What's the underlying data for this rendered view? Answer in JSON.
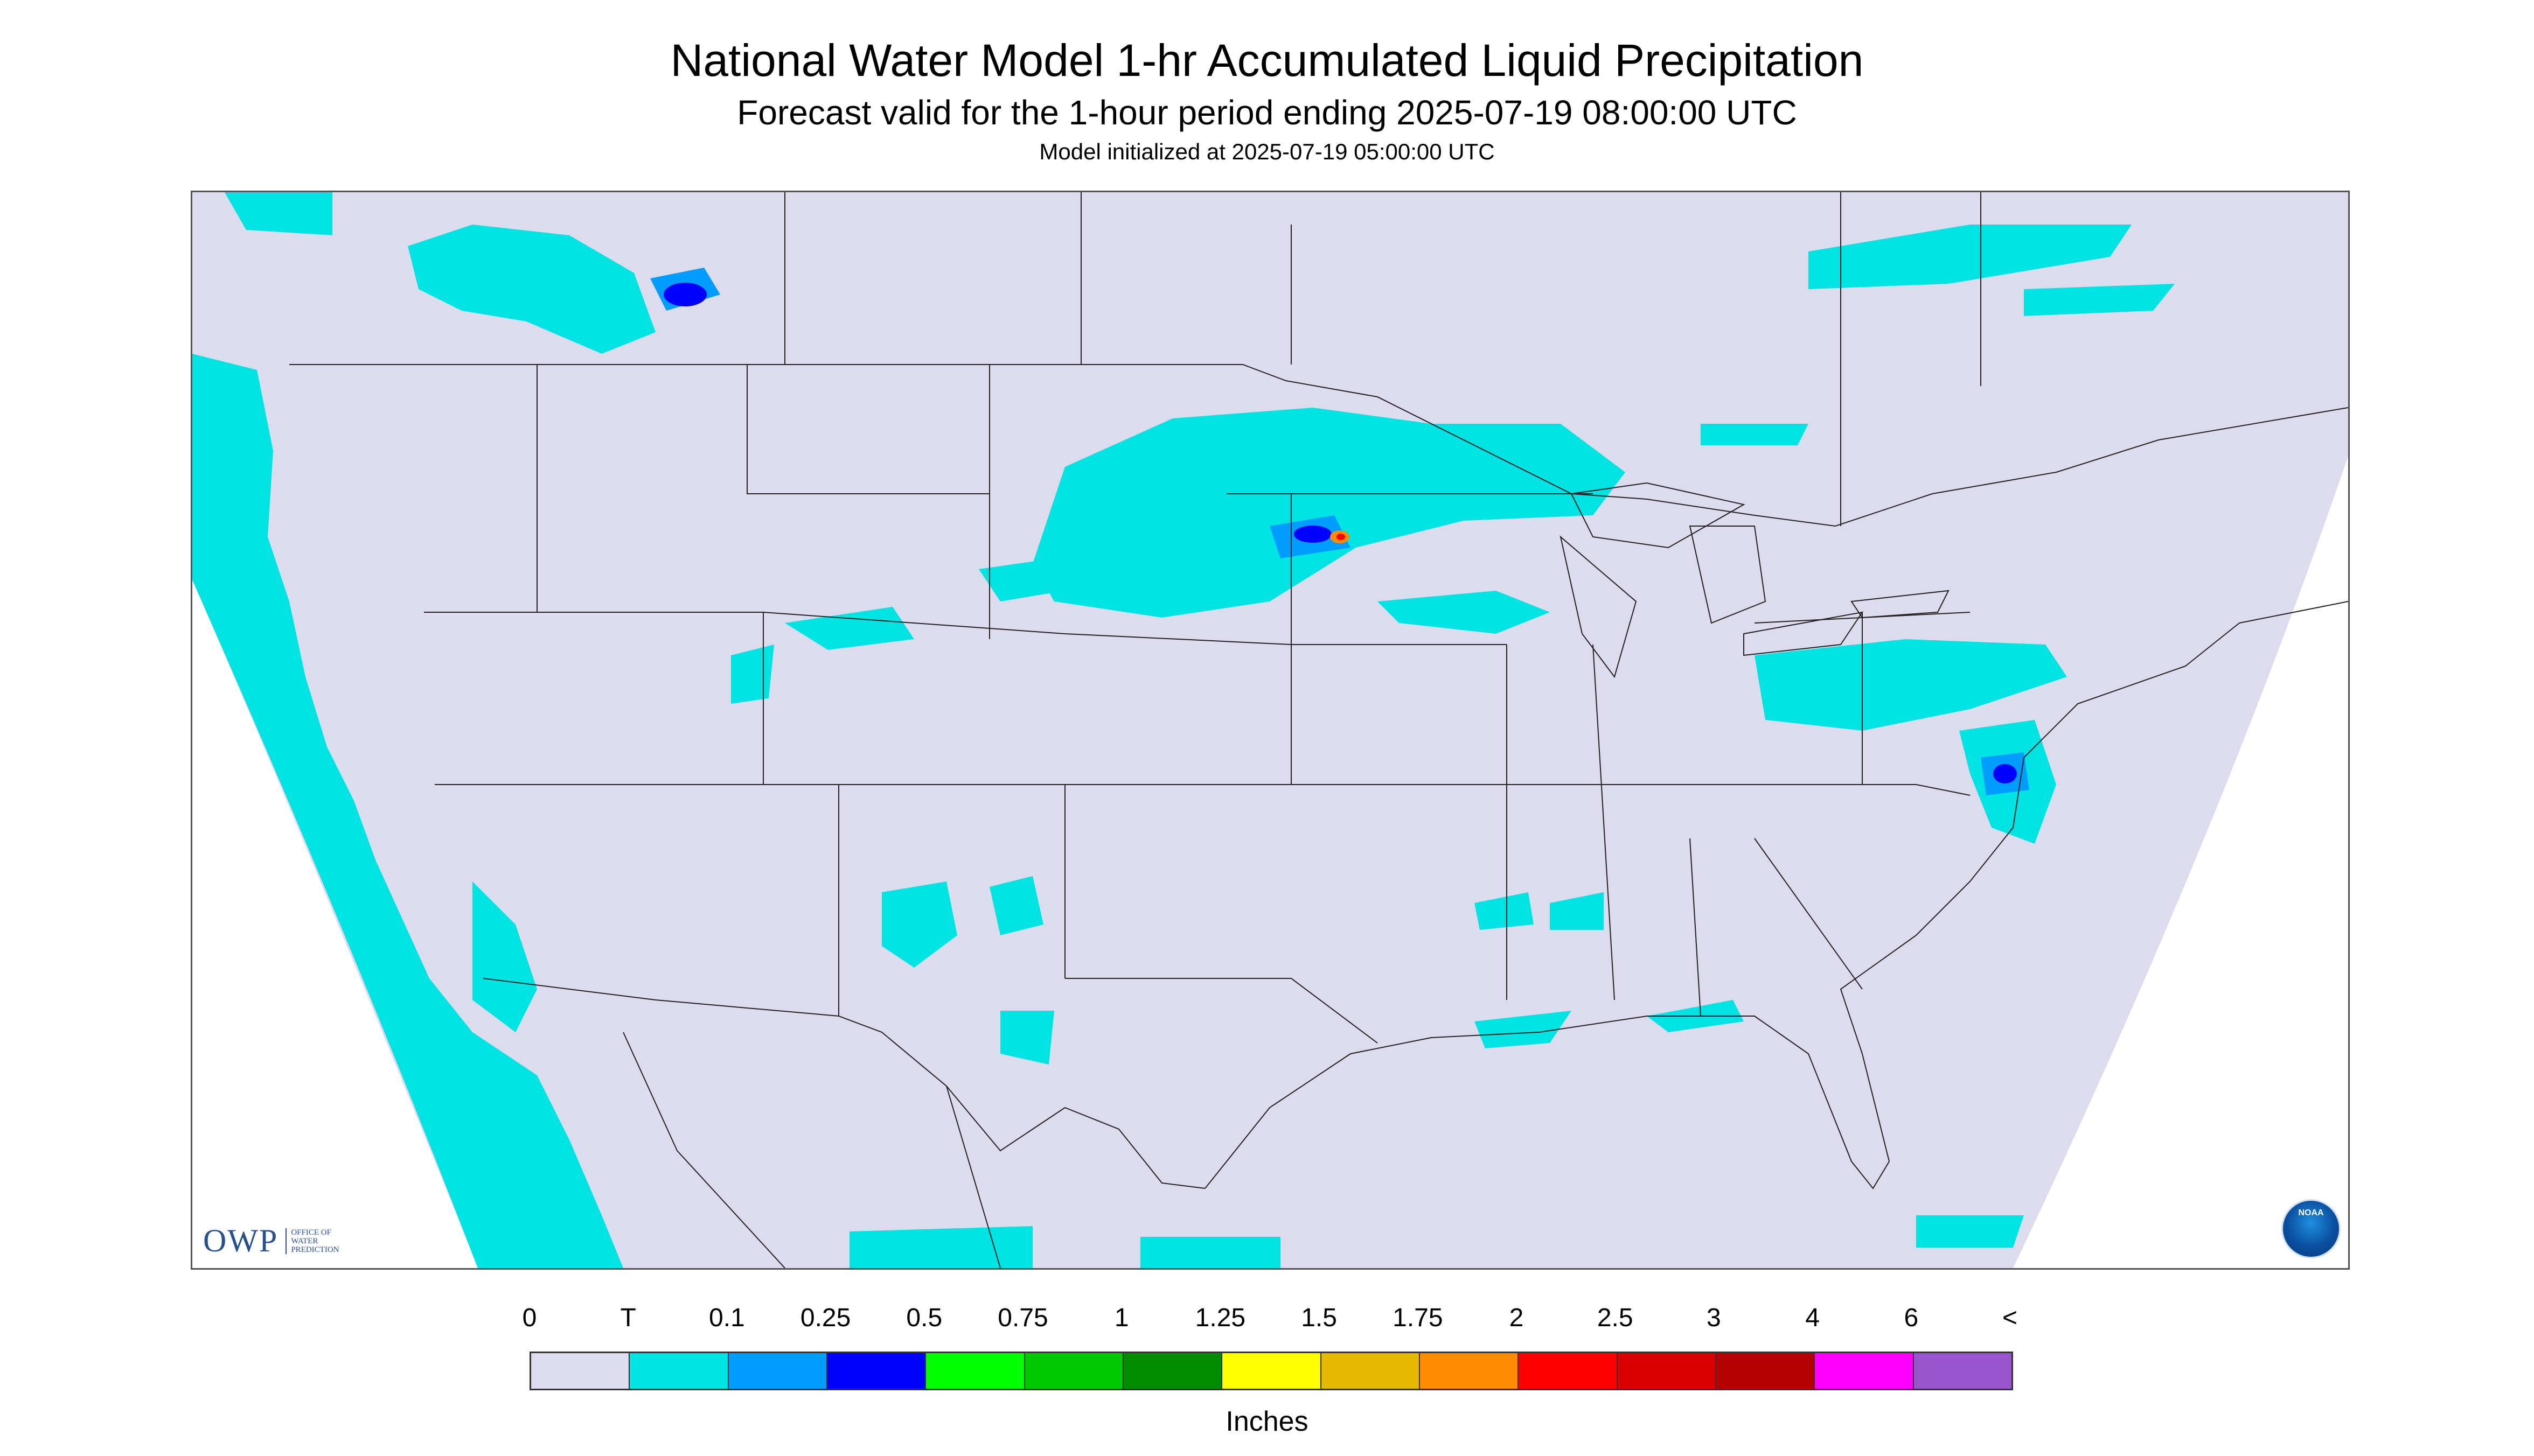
{
  "header": {
    "title": "National Water Model 1-hr Accumulated Liquid Precipitation",
    "subtitle": "Forecast valid for the 1-hour period ending 2025-07-19 08:00:00 UTC",
    "init_line": "Model initialized at 2025-07-19 05:00:00 UTC"
  },
  "logos": {
    "owp_text": "OWP",
    "owp_sub": [
      "OFFICE OF",
      "WATER",
      "PREDICTION"
    ],
    "noaa_text": "NOAA"
  },
  "legend": {
    "units": "Inches",
    "labels": [
      "0",
      "T",
      "0.1",
      "0.25",
      "0.5",
      "0.75",
      "1",
      "1.25",
      "1.5",
      "1.75",
      "2",
      "2.5",
      "3",
      "4",
      "6",
      "<"
    ],
    "colors": [
      "#dcdcee",
      "#00e3e3",
      "#009cff",
      "#0000ff",
      "#00ff00",
      "#00c800",
      "#008c00",
      "#ffff00",
      "#e6b900",
      "#ff8c00",
      "#ff0000",
      "#d80000",
      "#b40000",
      "#ff00ff",
      "#9955cc"
    ]
  },
  "map_colors": {
    "domain_fill": "#dcdcee",
    "outside_fill": "#ffffff",
    "boundary": "#222222",
    "trace": "#00e3e3",
    "light": "#009cff",
    "moderate": "#0000ff",
    "heavy": "#ff0000",
    "very_heavy": "#ff8c00"
  }
}
